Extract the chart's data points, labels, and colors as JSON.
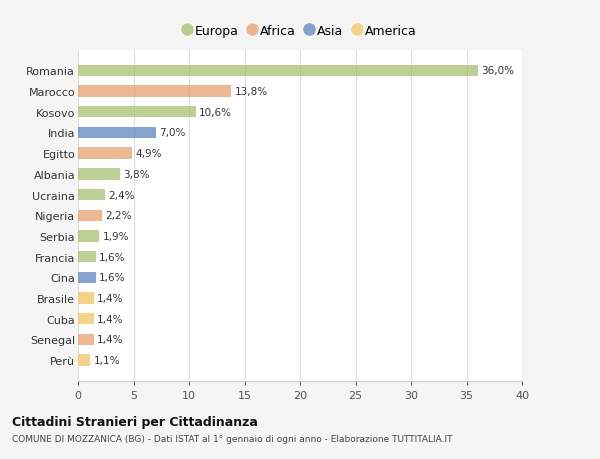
{
  "countries": [
    "Romania",
    "Marocco",
    "Kosovo",
    "India",
    "Egitto",
    "Albania",
    "Ucraina",
    "Nigeria",
    "Serbia",
    "Francia",
    "Cina",
    "Brasile",
    "Cuba",
    "Senegal",
    "Perù"
  ],
  "values": [
    36.0,
    13.8,
    10.6,
    7.0,
    4.9,
    3.8,
    2.4,
    2.2,
    1.9,
    1.6,
    1.6,
    1.4,
    1.4,
    1.4,
    1.1
  ],
  "labels": [
    "36,0%",
    "13,8%",
    "10,6%",
    "7,0%",
    "4,9%",
    "3,8%",
    "2,4%",
    "2,2%",
    "1,9%",
    "1,6%",
    "1,6%",
    "1,4%",
    "1,4%",
    "1,4%",
    "1,1%"
  ],
  "continent": [
    "Europa",
    "Africa",
    "Europa",
    "Asia",
    "Africa",
    "Europa",
    "Europa",
    "Africa",
    "Europa",
    "Europa",
    "Asia",
    "America",
    "America",
    "Africa",
    "America"
  ],
  "colors": {
    "Europa": "#adc57e",
    "Africa": "#e8a87c",
    "Asia": "#6b8ec4",
    "America": "#f2c96e"
  },
  "legend_order": [
    "Europa",
    "Africa",
    "Asia",
    "America"
  ],
  "title": "Cittadini Stranieri per Cittadinanza",
  "subtitle": "COMUNE DI MOZZANICA (BG) - Dati ISTAT al 1° gennaio di ogni anno - Elaborazione TUTTITALIA.IT",
  "xlim": [
    0,
    40
  ],
  "xticks": [
    0,
    5,
    10,
    15,
    20,
    25,
    30,
    35,
    40
  ],
  "background_color": "#f5f5f5",
  "plot_bg": "#ffffff"
}
